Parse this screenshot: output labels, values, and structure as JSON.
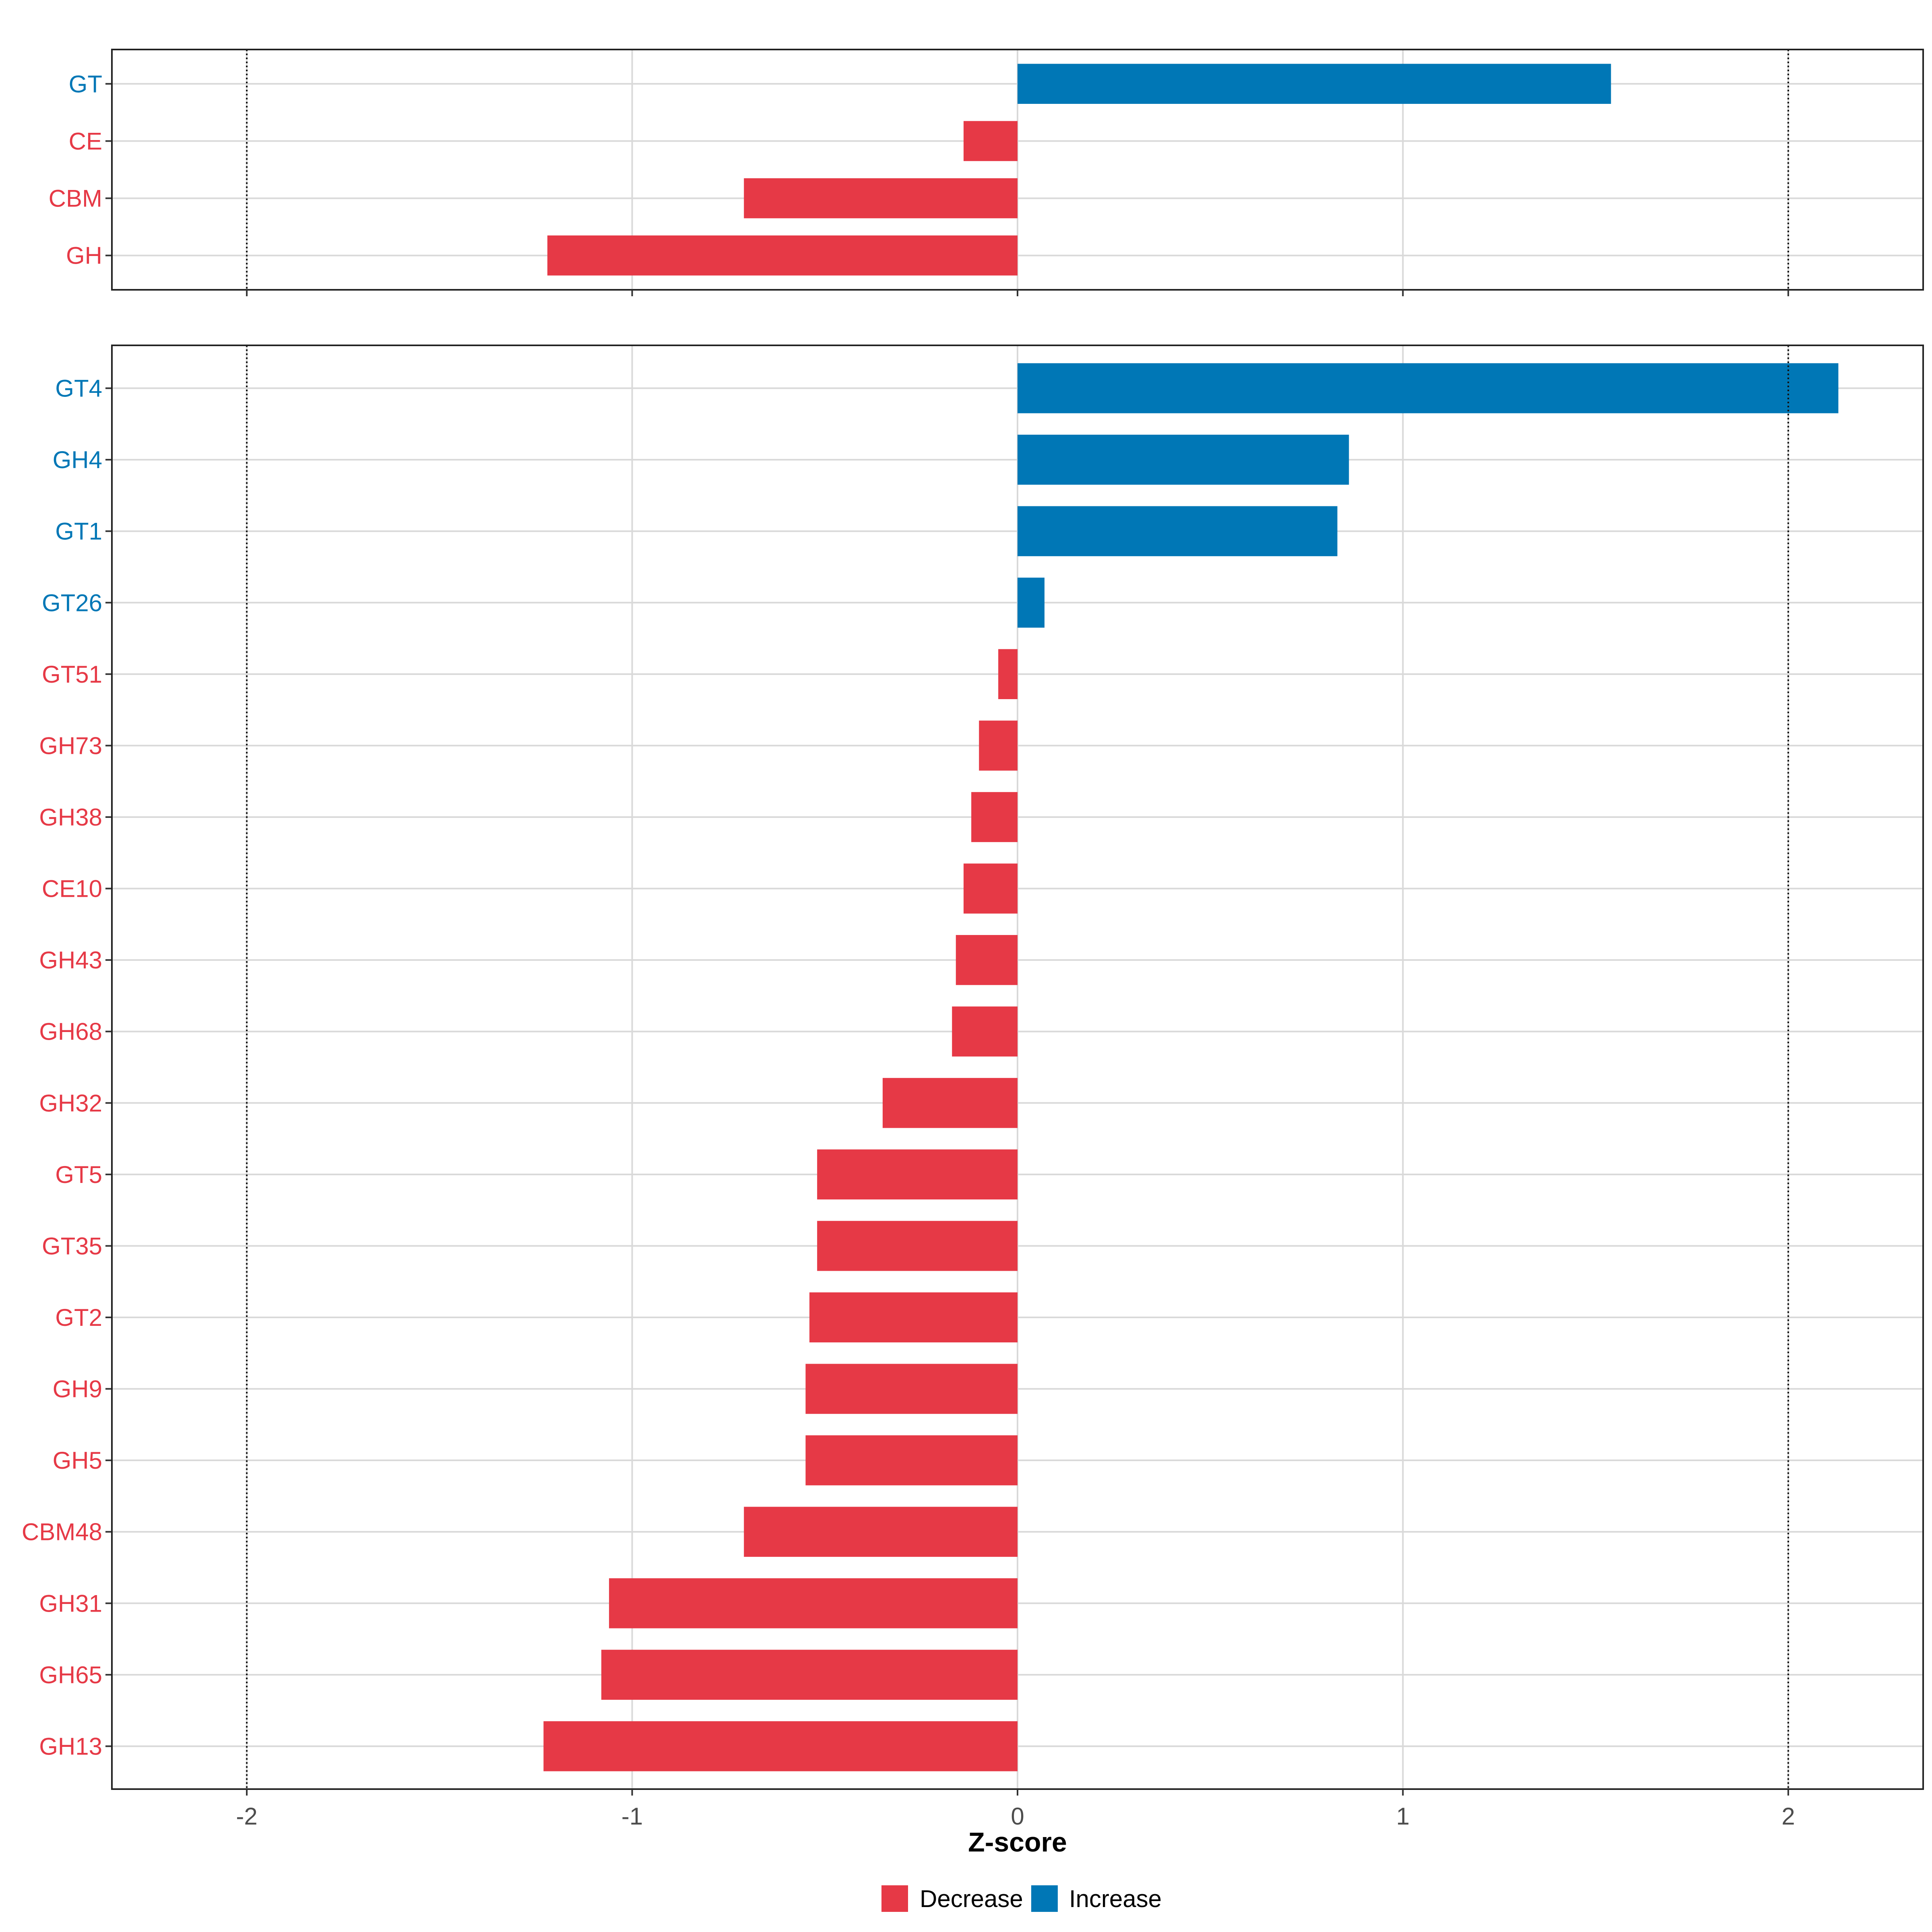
{
  "chart_data": {
    "type": "bar",
    "orientation": "horizontal",
    "xlabel": "Z-score",
    "xlim": [
      -2.35,
      2.35
    ],
    "x_ticks": [
      -2,
      -1,
      0,
      1,
      2
    ],
    "x_tick_labels": [
      "-2",
      "-1",
      "0",
      "1",
      "2"
    ],
    "reference_lines": [
      -2,
      2
    ],
    "grid": true,
    "legend_position": "bottom",
    "legend": [
      {
        "label": "Decrease",
        "color": "#E63946"
      },
      {
        "label": "Increase",
        "color": "#0077B6"
      }
    ],
    "panels": [
      {
        "categories": [
          "GT",
          "CE",
          "CBM",
          "GH"
        ],
        "values": [
          1.54,
          -0.14,
          -0.71,
          -1.22
        ]
      },
      {
        "categories": [
          "GT4",
          "GH4",
          "GT1",
          "GT26",
          "GT51",
          "GH73",
          "GH38",
          "CE10",
          "GH43",
          "GH68",
          "GH32",
          "GT5",
          "GT35",
          "GT2",
          "GH9",
          "GH5",
          "CBM48",
          "GH31",
          "GH65",
          "GH13"
        ],
        "values": [
          2.13,
          0.86,
          0.83,
          0.07,
          -0.05,
          -0.1,
          -0.12,
          -0.14,
          -0.16,
          -0.17,
          -0.35,
          -0.52,
          -0.52,
          -0.54,
          -0.55,
          -0.55,
          -0.71,
          -1.06,
          -1.08,
          -1.23
        ]
      }
    ]
  }
}
